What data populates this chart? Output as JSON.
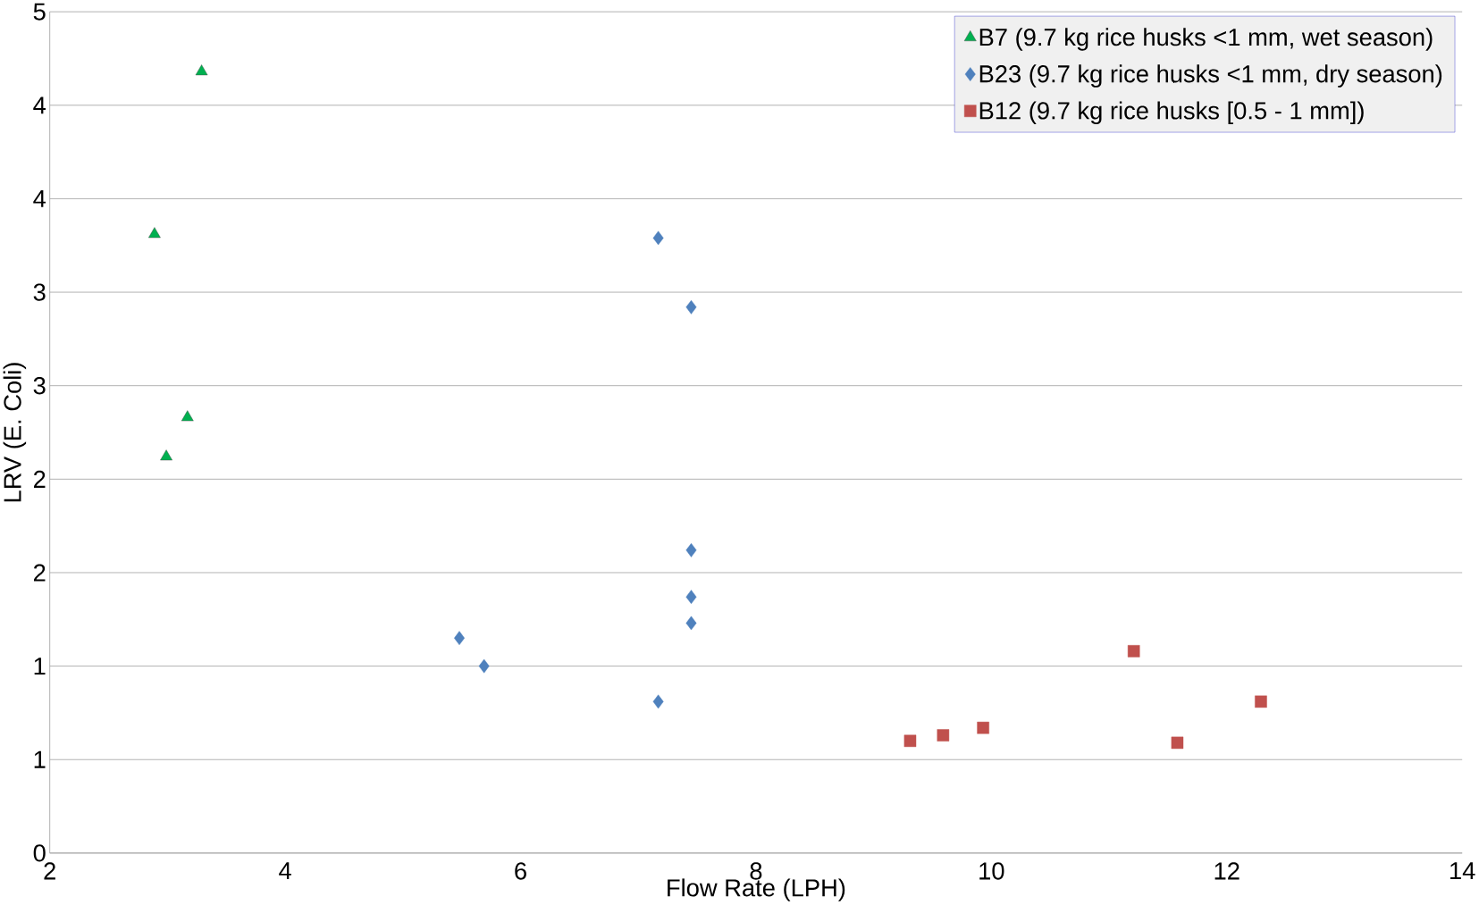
{
  "chart_data": {
    "type": "scatter",
    "xlabel": "Flow Rate (LPH)",
    "ylabel": "LRV (E. Coli)",
    "xlim": [
      2,
      14
    ],
    "xticks": [
      2,
      4,
      6,
      8,
      10,
      12,
      14
    ],
    "ylim": [
      0,
      4.5
    ],
    "yticks": [
      0,
      {
        "value": 0.5,
        "label": "1"
      },
      1,
      {
        "value": 1.5,
        "label": "2"
      },
      2,
      {
        "value": 2.5,
        "label": "3"
      },
      3,
      {
        "value": 3.5,
        "label": "4"
      },
      4,
      {
        "value": 4.5,
        "label": "5"
      }
    ],
    "grid": "y",
    "legend": "top right",
    "series": [
      {
        "name": "B7 (9.7 kg rice husks <1 mm, wet season)",
        "color": "#00b050",
        "marker": "triangle",
        "x": [
          3.29,
          2.89,
          3.17,
          2.99
        ],
        "values": [
          4.18,
          3.31,
          2.33,
          2.12
        ]
      },
      {
        "name": "B23 (9.7 kg rice husks <1 mm, dry season)",
        "color": "#4f81bd",
        "marker": "diamond",
        "x": [
          7.17,
          7.45,
          7.45,
          7.45,
          7.45,
          5.48,
          5.69,
          7.17
        ],
        "values": [
          3.29,
          2.92,
          1.62,
          1.37,
          1.23,
          1.15,
          1.0,
          0.81
        ]
      },
      {
        "name": "B12 (9.7 kg rice husks [0.5 - 1 mm])",
        "color": "#c0504d",
        "marker": "square",
        "x": [
          9.31,
          9.59,
          9.93,
          11.21,
          11.58,
          12.29
        ],
        "values": [
          0.6,
          0.63,
          0.67,
          1.08,
          0.59,
          0.81
        ]
      }
    ]
  }
}
